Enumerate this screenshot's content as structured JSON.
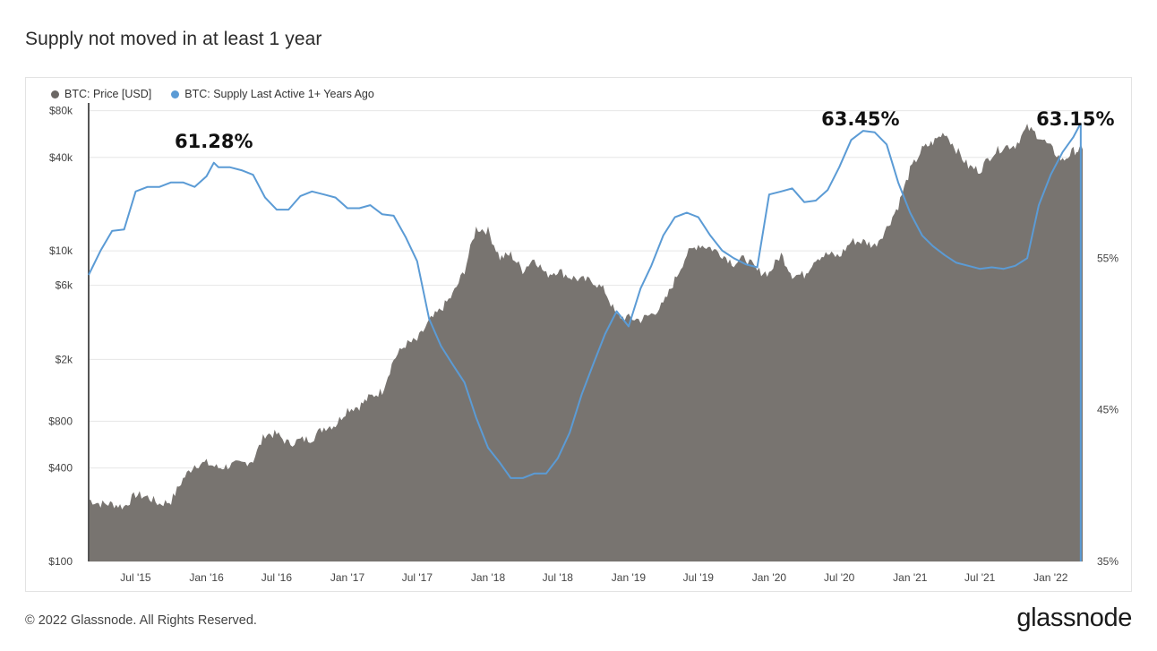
{
  "page": {
    "title": "Supply not moved in at least 1 year",
    "copyright": "© 2022 Glassnode. All Rights Reserved.",
    "brand": "glassnode"
  },
  "colors": {
    "price_fill": "#787470",
    "supply_line": "#5b9bd5",
    "grid": "#e6e6e6",
    "text": "#444444"
  },
  "chart_data": {
    "type": "area",
    "title": "Supply not moved in at least 1 year",
    "legend": [
      {
        "name": "BTC: Price [USD]",
        "color": "#6b6764"
      },
      {
        "name": "BTC: Supply Last Active 1+ Years Ago",
        "color": "#5b9bd5"
      }
    ],
    "legend_position": "top-left",
    "x_range": [
      "2015-03-01",
      "2022-03-25"
    ],
    "x_ticks": [
      "Jul '15",
      "Jan '16",
      "Jul '16",
      "Jan '17",
      "Jul '17",
      "Jan '18",
      "Jul '18",
      "Jan '19",
      "Jul '19",
      "Jan '20",
      "Jul '20",
      "Jan '21",
      "Jul '21",
      "Jan '22"
    ],
    "x_tick_dates": [
      "2015-07-01",
      "2016-01-01",
      "2016-07-01",
      "2017-01-01",
      "2017-07-01",
      "2018-01-01",
      "2018-07-01",
      "2019-01-01",
      "2019-07-01",
      "2020-01-01",
      "2020-07-01",
      "2021-01-01",
      "2021-07-01",
      "2022-01-01"
    ],
    "y_left": {
      "scale": "log",
      "ticks": [
        100,
        400,
        800,
        2000,
        6000,
        10000,
        40000,
        80000
      ],
      "tick_labels": [
        "$100",
        "$400",
        "$800",
        "$2k",
        "$6k",
        "$10k",
        "$40k",
        "$80k"
      ],
      "range": [
        100,
        85000
      ]
    },
    "y_right": {
      "scale": "linear",
      "ticks": [
        35,
        45,
        55
      ],
      "tick_labels": [
        "35%",
        "45%",
        "55%"
      ],
      "range": [
        35,
        65
      ]
    },
    "annotations": [
      {
        "text": "61.28%",
        "x": "2016-01-20"
      },
      {
        "text": "63.45%",
        "x": "2020-08-25"
      },
      {
        "text": "63.15%",
        "x": "2022-03-10"
      }
    ],
    "series": [
      {
        "name": "BTC: Price [USD]",
        "axis": "left",
        "points": [
          [
            "2015-03-01",
            250
          ],
          [
            "2015-04-01",
            235
          ],
          [
            "2015-05-01",
            235
          ],
          [
            "2015-06-01",
            225
          ],
          [
            "2015-07-01",
            270
          ],
          [
            "2015-08-01",
            260
          ],
          [
            "2015-09-01",
            235
          ],
          [
            "2015-10-01",
            245
          ],
          [
            "2015-11-01",
            340
          ],
          [
            "2015-12-01",
            420
          ],
          [
            "2016-01-01",
            430
          ],
          [
            "2016-02-01",
            400
          ],
          [
            "2016-03-01",
            415
          ],
          [
            "2016-04-01",
            425
          ],
          [
            "2016-05-01",
            450
          ],
          [
            "2016-06-01",
            660
          ],
          [
            "2016-07-01",
            660
          ],
          [
            "2016-08-01",
            575
          ],
          [
            "2016-09-01",
            605
          ],
          [
            "2016-10-01",
            620
          ],
          [
            "2016-11-01",
            730
          ],
          [
            "2016-12-01",
            760
          ],
          [
            "2017-01-01",
            960
          ],
          [
            "2017-02-01",
            1000
          ],
          [
            "2017-03-01",
            1150
          ],
          [
            "2017-04-01",
            1250
          ],
          [
            "2017-05-01",
            2000
          ],
          [
            "2017-06-01",
            2500
          ],
          [
            "2017-07-01",
            2650
          ],
          [
            "2017-08-01",
            3500
          ],
          [
            "2017-09-01",
            4200
          ],
          [
            "2017-10-01",
            5200
          ],
          [
            "2017-11-01",
            7500
          ],
          [
            "2017-12-01",
            14000
          ],
          [
            "2018-01-01",
            13500
          ],
          [
            "2018-02-01",
            9000
          ],
          [
            "2018-03-01",
            9500
          ],
          [
            "2018-04-01",
            7500
          ],
          [
            "2018-05-01",
            9000
          ],
          [
            "2018-06-01",
            7000
          ],
          [
            "2018-07-01",
            7500
          ],
          [
            "2018-08-01",
            6800
          ],
          [
            "2018-09-01",
            6500
          ],
          [
            "2018-10-01",
            6400
          ],
          [
            "2018-11-01",
            5500
          ],
          [
            "2018-12-01",
            3800
          ],
          [
            "2019-01-01",
            3700
          ],
          [
            "2019-02-01",
            3600
          ],
          [
            "2019-03-01",
            3900
          ],
          [
            "2019-04-01",
            4500
          ],
          [
            "2019-05-01",
            6500
          ],
          [
            "2019-06-01",
            9500
          ],
          [
            "2019-07-01",
            11000
          ],
          [
            "2019-08-01",
            10500
          ],
          [
            "2019-09-01",
            9500
          ],
          [
            "2019-10-01",
            8300
          ],
          [
            "2019-11-01",
            9000
          ],
          [
            "2019-12-01",
            7400
          ],
          [
            "2020-01-01",
            7200
          ],
          [
            "2020-02-01",
            9500
          ],
          [
            "2020-03-01",
            7000
          ],
          [
            "2020-04-01",
            7000
          ],
          [
            "2020-05-01",
            9000
          ],
          [
            "2020-06-01",
            9500
          ],
          [
            "2020-07-01",
            9200
          ],
          [
            "2020-08-01",
            11500
          ],
          [
            "2020-09-01",
            11500
          ],
          [
            "2020-10-01",
            10800
          ],
          [
            "2020-11-01",
            14000
          ],
          [
            "2020-12-01",
            19500
          ],
          [
            "2021-01-01",
            33000
          ],
          [
            "2021-02-01",
            45000
          ],
          [
            "2021-03-01",
            50000
          ],
          [
            "2021-04-01",
            58000
          ],
          [
            "2021-05-01",
            45000
          ],
          [
            "2021-06-01",
            35000
          ],
          [
            "2021-07-01",
            33000
          ],
          [
            "2021-08-01",
            42000
          ],
          [
            "2021-09-01",
            47000
          ],
          [
            "2021-10-01",
            48000
          ],
          [
            "2021-11-01",
            62000
          ],
          [
            "2021-12-01",
            55000
          ],
          [
            "2022-01-01",
            46000
          ],
          [
            "2022-02-01",
            38000
          ],
          [
            "2022-03-01",
            44000
          ],
          [
            "2022-03-25",
            45000
          ]
        ]
      },
      {
        "name": "BTC: Supply Last Active 1+ Years Ago",
        "axis": "right",
        "points": [
          [
            "2015-03-01",
            53.9
          ],
          [
            "2015-04-01",
            55.5
          ],
          [
            "2015-05-01",
            56.8
          ],
          [
            "2015-06-01",
            56.9
          ],
          [
            "2015-07-01",
            59.4
          ],
          [
            "2015-08-01",
            59.7
          ],
          [
            "2015-09-01",
            59.7
          ],
          [
            "2015-10-01",
            60.0
          ],
          [
            "2015-11-01",
            60.0
          ],
          [
            "2015-12-01",
            59.7
          ],
          [
            "2016-01-01",
            60.4
          ],
          [
            "2016-01-20",
            61.3
          ],
          [
            "2016-02-01",
            61.0
          ],
          [
            "2016-03-01",
            61.0
          ],
          [
            "2016-04-01",
            60.8
          ],
          [
            "2016-05-01",
            60.5
          ],
          [
            "2016-06-01",
            59.0
          ],
          [
            "2016-07-01",
            58.2
          ],
          [
            "2016-08-01",
            58.2
          ],
          [
            "2016-09-01",
            59.1
          ],
          [
            "2016-10-01",
            59.4
          ],
          [
            "2016-11-01",
            59.2
          ],
          [
            "2016-12-01",
            59.0
          ],
          [
            "2017-01-01",
            58.3
          ],
          [
            "2017-02-01",
            58.3
          ],
          [
            "2017-03-01",
            58.5
          ],
          [
            "2017-04-01",
            57.9
          ],
          [
            "2017-05-01",
            57.8
          ],
          [
            "2017-06-01",
            56.4
          ],
          [
            "2017-07-01",
            54.8
          ],
          [
            "2017-08-01",
            51.0
          ],
          [
            "2017-09-01",
            49.2
          ],
          [
            "2017-10-01",
            48.0
          ],
          [
            "2017-11-01",
            46.8
          ],
          [
            "2017-12-01",
            44.5
          ],
          [
            "2018-01-01",
            42.5
          ],
          [
            "2018-02-01",
            41.5
          ],
          [
            "2018-03-01",
            40.5
          ],
          [
            "2018-04-01",
            40.5
          ],
          [
            "2018-05-01",
            40.8
          ],
          [
            "2018-06-01",
            40.8
          ],
          [
            "2018-07-01",
            41.8
          ],
          [
            "2018-08-01",
            43.5
          ],
          [
            "2018-09-01",
            46.0
          ],
          [
            "2018-10-01",
            48.0
          ],
          [
            "2018-11-01",
            50.0
          ],
          [
            "2018-12-01",
            51.5
          ],
          [
            "2019-01-01",
            50.5
          ],
          [
            "2019-02-01",
            53.0
          ],
          [
            "2019-03-01",
            54.5
          ],
          [
            "2019-04-01",
            56.5
          ],
          [
            "2019-05-01",
            57.7
          ],
          [
            "2019-06-01",
            58.0
          ],
          [
            "2019-07-01",
            57.7
          ],
          [
            "2019-08-01",
            56.5
          ],
          [
            "2019-09-01",
            55.5
          ],
          [
            "2019-10-01",
            55.0
          ],
          [
            "2019-11-01",
            54.6
          ],
          [
            "2019-12-01",
            54.4
          ],
          [
            "2020-01-01",
            59.2
          ],
          [
            "2020-02-01",
            59.4
          ],
          [
            "2020-03-01",
            59.6
          ],
          [
            "2020-04-01",
            58.7
          ],
          [
            "2020-05-01",
            58.8
          ],
          [
            "2020-06-01",
            59.5
          ],
          [
            "2020-07-01",
            61.0
          ],
          [
            "2020-08-01",
            62.8
          ],
          [
            "2020-09-01",
            63.4
          ],
          [
            "2020-10-01",
            63.3
          ],
          [
            "2020-11-01",
            62.5
          ],
          [
            "2020-12-01",
            60.0
          ],
          [
            "2021-01-01",
            58.0
          ],
          [
            "2021-02-01",
            56.5
          ],
          [
            "2021-03-01",
            55.8
          ],
          [
            "2021-04-01",
            55.2
          ],
          [
            "2021-05-01",
            54.7
          ],
          [
            "2021-06-01",
            54.5
          ],
          [
            "2021-07-01",
            54.3
          ],
          [
            "2021-08-01",
            54.4
          ],
          [
            "2021-09-01",
            54.3
          ],
          [
            "2021-10-01",
            54.5
          ],
          [
            "2021-11-01",
            55.0
          ],
          [
            "2021-12-01",
            58.5
          ],
          [
            "2022-01-01",
            60.5
          ],
          [
            "2022-02-01",
            62.0
          ],
          [
            "2022-03-01",
            63.0
          ],
          [
            "2022-03-20",
            63.9
          ]
        ]
      }
    ]
  }
}
